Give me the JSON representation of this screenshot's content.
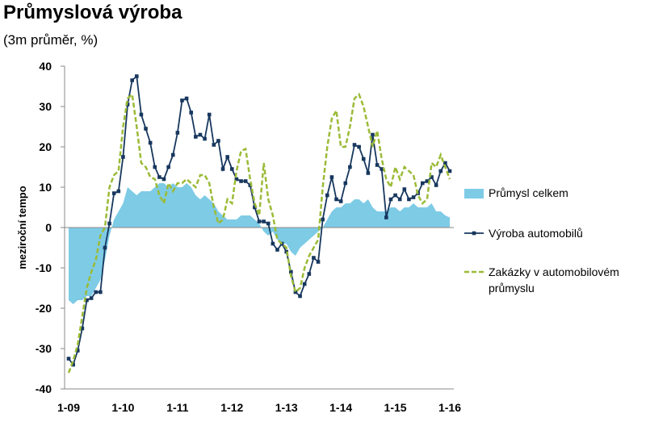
{
  "chart_data": {
    "type": "combo",
    "title": "Průmyslová výroba",
    "subtitle": "(3m průměr, %)",
    "y_axis_label": "meziroční tempo",
    "categories": [
      "1-09",
      null,
      null,
      null,
      null,
      null,
      null,
      null,
      null,
      null,
      null,
      null,
      "1-10",
      null,
      null,
      null,
      null,
      null,
      null,
      null,
      null,
      null,
      null,
      null,
      "1-11",
      null,
      null,
      null,
      null,
      null,
      null,
      null,
      null,
      null,
      null,
      null,
      "1-12",
      null,
      null,
      null,
      null,
      null,
      null,
      null,
      null,
      null,
      null,
      null,
      "1-13",
      null,
      null,
      null,
      null,
      null,
      null,
      null,
      null,
      null,
      null,
      null,
      "1-14",
      null,
      null,
      null,
      null,
      null,
      null,
      null,
      null,
      null,
      null,
      null,
      "1-15",
      null,
      null,
      null,
      null,
      null,
      null,
      null,
      null,
      null,
      null,
      null,
      "1-16"
    ],
    "ylim": [
      -40,
      40
    ],
    "yticks": [
      -40,
      -30,
      -20,
      -10,
      0,
      10,
      20,
      30,
      40
    ],
    "grid": false,
    "legend": "right",
    "series": [
      {
        "name": "Průmysl celkem",
        "style": "area",
        "color": "#7ecbe6",
        "values": [
          -18,
          -19,
          -18,
          -18,
          -17,
          -17,
          -15,
          -13,
          -8,
          -2,
          2,
          4,
          6,
          10,
          9,
          8,
          9,
          9,
          9,
          10,
          11,
          11,
          10,
          11,
          10,
          10,
          11,
          10,
          8,
          7,
          8,
          7,
          6,
          4,
          3,
          2,
          2,
          2,
          3,
          3,
          3,
          2,
          1,
          -1,
          -2,
          -1,
          -3,
          -4,
          -4,
          -6,
          -7,
          -5,
          -4,
          -3,
          -2,
          -1,
          0,
          2,
          4,
          5,
          5,
          6,
          6,
          7,
          7,
          6,
          7,
          5,
          4,
          4,
          4,
          5,
          5,
          4,
          5,
          5,
          6,
          5,
          5,
          5,
          6,
          4,
          4,
          3,
          2.5
        ]
      },
      {
        "name": "Výroba automobilů",
        "style": "line-markers",
        "color": "#17375e",
        "values": [
          -32.5,
          -34,
          -30.5,
          -25,
          -18,
          -17.5,
          -16,
          -16,
          -5,
          1,
          8.5,
          9,
          17.5,
          30.5,
          36.5,
          37.5,
          28,
          24.5,
          21,
          15,
          12.5,
          12,
          15,
          18,
          23.5,
          31.5,
          32,
          28.5,
          22.5,
          23,
          22,
          28,
          20.5,
          21.5,
          14.5,
          17.5,
          14.5,
          12,
          11.5,
          11.5,
          10.5,
          5,
          1.5,
          1.5,
          1,
          -4,
          -5.5,
          -4,
          -6,
          -11,
          -16,
          -17,
          -14,
          -11.5,
          -7.5,
          -8.5,
          2,
          8,
          12.5,
          7,
          6.5,
          11,
          15,
          20.5,
          20,
          17,
          13.5,
          23,
          15.5,
          14.5,
          2.5,
          7,
          8,
          7,
          9.5,
          7,
          7.5,
          8.5,
          11,
          11.5,
          12.5,
          10.5,
          14,
          16,
          14
        ]
      },
      {
        "name": "Zakázky v automobilovém průmyslu",
        "style": "dashed",
        "color": "#9bbb37",
        "values": [
          -36,
          -33,
          -29,
          -22,
          -15,
          -11,
          -8,
          -2,
          0,
          10,
          13,
          14,
          25,
          32,
          33,
          25,
          16,
          15,
          12.5,
          12,
          8,
          6,
          11,
          9,
          11,
          11,
          12,
          11,
          10,
          13,
          13,
          11,
          5,
          1,
          2,
          7,
          6,
          14,
          19,
          19.5,
          12,
          6,
          3,
          16,
          7,
          3,
          -3,
          -4,
          -5,
          -12,
          -16,
          -15,
          -10,
          -7,
          -5,
          -3,
          10,
          20,
          27,
          29,
          20,
          20,
          25,
          32,
          33,
          30,
          25,
          20,
          24,
          17,
          12,
          10,
          15,
          12,
          15,
          14,
          13,
          8,
          6,
          7,
          16,
          15,
          18,
          15,
          12
        ]
      }
    ]
  }
}
